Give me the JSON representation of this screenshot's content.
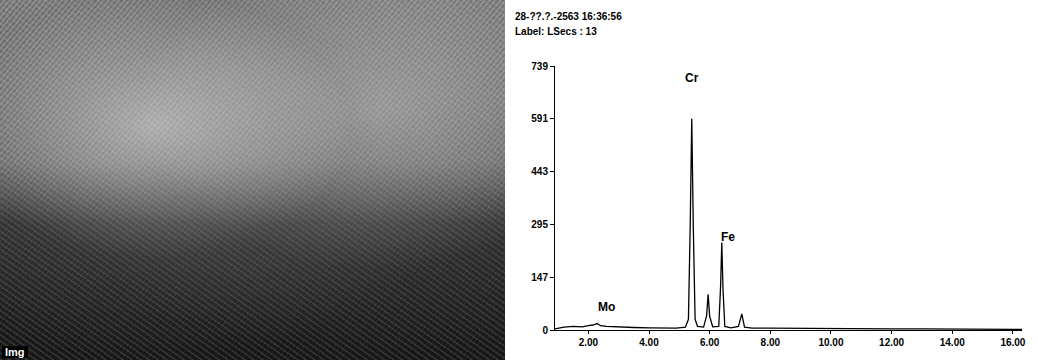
{
  "image": {
    "label": "Img"
  },
  "chart_data": {
    "type": "line",
    "title": "28-??.?.-2563 16:36:56",
    "subtitle": "Label: LSecs : 13",
    "x": [
      0.9,
      1.2,
      1.5,
      1.8,
      2.0,
      2.15,
      2.29,
      2.4,
      2.6,
      3.0,
      3.5,
      4.0,
      4.5,
      4.9,
      5.2,
      5.3,
      5.36,
      5.41,
      5.46,
      5.52,
      5.6,
      5.8,
      5.9,
      5.95,
      6.0,
      6.1,
      6.3,
      6.36,
      6.4,
      6.44,
      6.5,
      6.7,
      6.95,
      7.06,
      7.15,
      7.4,
      8.0,
      9.0,
      10.0,
      11.0,
      12.0,
      13.0,
      14.0,
      15.0,
      16.0,
      16.3
    ],
    "values": [
      3,
      8,
      10,
      9,
      12,
      14,
      18,
      12,
      10,
      8,
      7,
      6,
      6,
      5,
      8,
      30,
      300,
      591,
      290,
      30,
      10,
      8,
      40,
      100,
      38,
      9,
      10,
      120,
      245,
      115,
      10,
      6,
      10,
      45,
      8,
      5,
      5,
      4,
      4,
      3,
      3,
      3,
      2,
      2,
      2,
      2
    ],
    "color": "#000000",
    "xlim": [
      0.9,
      16.3
    ],
    "xticks": [
      {
        "value": 2,
        "label": "2.00"
      },
      {
        "value": 4,
        "label": "4.00"
      },
      {
        "value": 6,
        "label": "6.00"
      },
      {
        "value": 8,
        "label": "8.00"
      },
      {
        "value": 10,
        "label": "10.00"
      },
      {
        "value": 12,
        "label": "12.00"
      },
      {
        "value": 14,
        "label": "14.00"
      },
      {
        "value": 16,
        "label": "16.00"
      }
    ],
    "ylim": [
      0,
      739
    ],
    "yticks": [
      0,
      147,
      295,
      443,
      591,
      739
    ],
    "grid": false,
    "annotations": [
      {
        "text": "Cr",
        "x": 5.41,
        "y": 680
      },
      {
        "text": "Fe",
        "x": 6.62,
        "y": 235
      },
      {
        "text": "Mo",
        "x": 2.6,
        "y": 40
      }
    ]
  }
}
